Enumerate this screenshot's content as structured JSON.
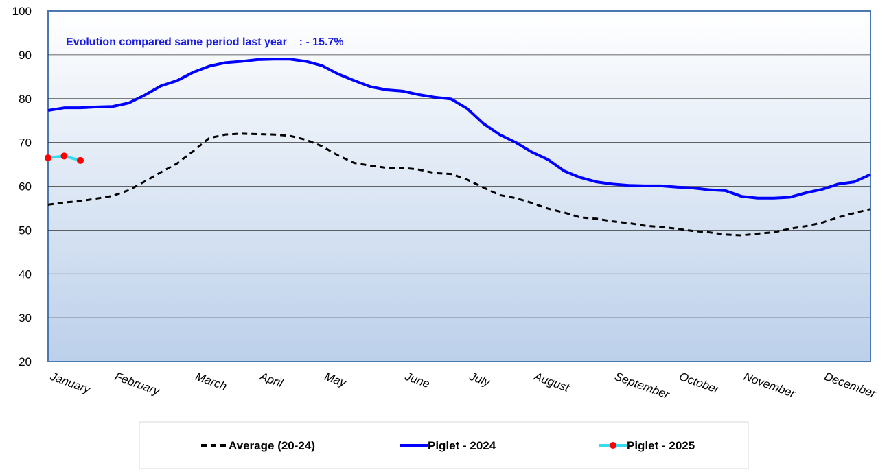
{
  "chart_data": {
    "type": "line",
    "annotation": "Evolution compared same period last year    : - 15.7%",
    "categories": [
      "January",
      null,
      null,
      null,
      "February",
      null,
      null,
      null,
      null,
      "March",
      null,
      null,
      null,
      "April",
      null,
      null,
      null,
      "May",
      null,
      null,
      null,
      null,
      "June",
      null,
      null,
      null,
      "July",
      null,
      null,
      null,
      "August",
      null,
      null,
      null,
      null,
      "September",
      null,
      null,
      null,
      "October",
      null,
      null,
      null,
      "November",
      null,
      null,
      null,
      null,
      "December",
      null,
      null,
      null
    ],
    "series": [
      {
        "name": "Average (20-24)",
        "color": "#000000",
        "style": "dashed",
        "values": [
          55.8,
          56.3,
          56.6,
          57.2,
          57.8,
          59.1,
          61.1,
          63.2,
          65.2,
          68.0,
          71.0,
          71.8,
          72.0,
          71.9,
          71.8,
          71.5,
          70.6,
          69.1,
          67.0,
          65.3,
          64.7,
          64.2,
          64.2,
          63.8,
          63.0,
          62.8,
          61.5,
          59.7,
          58.0,
          57.3,
          56.2,
          54.9,
          54.0,
          52.9,
          52.6,
          52.0,
          51.6,
          51.0,
          50.7,
          50.3,
          49.8,
          49.5,
          49.0,
          48.8,
          49.2,
          49.5,
          50.3,
          50.9,
          51.7,
          52.9,
          53.9,
          54.8
        ]
      },
      {
        "name": "Piglet - 2024",
        "color": "#0000ff",
        "style": "solid",
        "values": [
          77.3,
          77.9,
          77.9,
          78.1,
          78.2,
          79.0,
          80.8,
          82.9,
          84.1,
          86.0,
          87.4,
          88.2,
          88.5,
          88.9,
          89.0,
          89.0,
          88.5,
          87.5,
          85.6,
          84.1,
          82.7,
          82.0,
          81.7,
          80.9,
          80.3,
          79.9,
          77.7,
          74.3,
          71.8,
          70.0,
          67.8,
          66.1,
          63.5,
          62.0,
          61.0,
          60.5,
          60.2,
          60.1,
          60.1,
          59.8,
          59.6,
          59.2,
          59.0,
          57.7,
          57.3,
          57.3,
          57.5,
          58.5,
          59.3,
          60.5,
          61.0,
          62.7
        ]
      },
      {
        "name": "Piglet - 2025",
        "color": "#33ddee",
        "style": "solid",
        "marker_color": "#ff0000",
        "values": [
          66.5,
          66.9,
          65.9,
          null,
          null,
          null,
          null,
          null,
          null,
          null,
          null,
          null,
          null,
          null,
          null,
          null,
          null,
          null,
          null,
          null,
          null,
          null,
          null,
          null,
          null,
          null,
          null,
          null,
          null,
          null,
          null,
          null,
          null,
          null,
          null,
          null,
          null,
          null,
          null,
          null,
          null,
          null,
          null,
          null,
          null,
          null,
          null,
          null,
          null,
          null,
          null,
          null
        ]
      }
    ],
    "ylim": [
      20,
      100
    ],
    "yticks": [
      20,
      30,
      40,
      50,
      60,
      70,
      80,
      90,
      100
    ],
    "grid": true
  }
}
